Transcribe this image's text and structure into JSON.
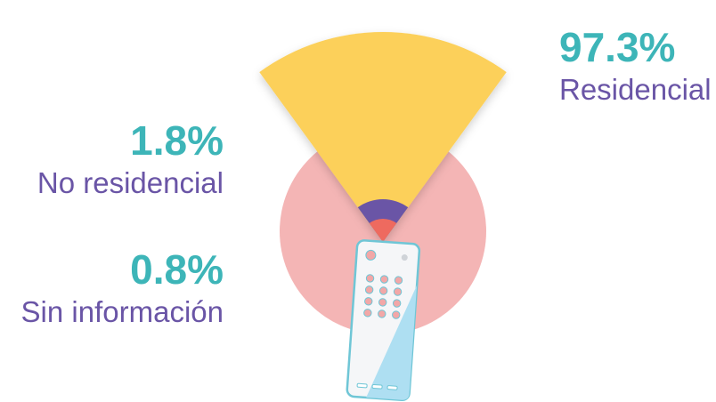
{
  "chart_data": {
    "type": "pie",
    "slices": [
      {
        "label": "Residencial",
        "display": "97.3%",
        "value": 97.3
      },
      {
        "label": "No residencial",
        "display": "1.8%",
        "value": 1.8
      },
      {
        "label": "Sin información",
        "display": "0.8%",
        "value": 0.8
      }
    ]
  },
  "colors": {
    "percent_text": "#3db5b8",
    "label_text": "#6a55a6",
    "residencial": "#fcd05a",
    "no_residencial": "#6a55a6",
    "sin_informacion": "#ee6b5f",
    "background_circle": "#f4b5b5",
    "remote_body": "#f5f6f8",
    "remote_edge": "#6fc6d6",
    "remote_screen": "#aedff2",
    "remote_button": "#f2a7a7"
  },
  "icons": {
    "remote": "tv-remote-icon"
  }
}
